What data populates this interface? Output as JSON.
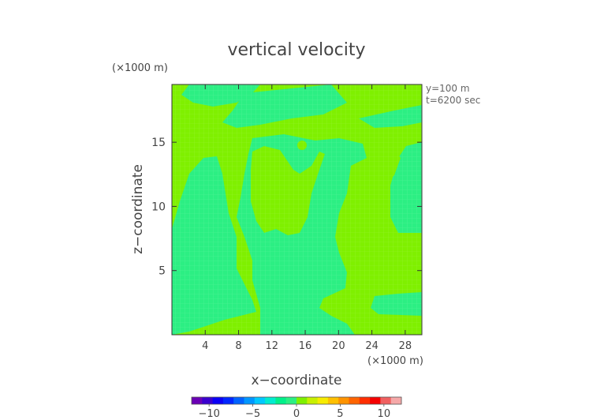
{
  "chart_data": {
    "type": "heatmap",
    "title": "vertical velocity",
    "xlabel": "x−coordinate",
    "ylabel": "z−coordinate",
    "x_unit": "(×1000 m)",
    "y_unit": "(×1000 m)",
    "annotations": [
      "y=100 m",
      "t=6200 sec"
    ],
    "xlim": [
      0,
      30
    ],
    "ylim": [
      0,
      19.5
    ],
    "x_ticks": [
      4,
      8,
      12,
      16,
      20,
      24,
      28
    ],
    "y_ticks": [
      5,
      10,
      15
    ],
    "x_tick_labels": [
      "4",
      "8",
      "12",
      "16",
      "20",
      "24",
      "28"
    ],
    "y_tick_labels": [
      "5",
      "10",
      "15"
    ],
    "field_levels": [
      "0 to 1.25",
      "-1.25 to 0"
    ],
    "region_colors": {
      "lime": "#7ff000",
      "teal": "#2cef83"
    },
    "colorbar": {
      "range": [
        -12,
        12
      ],
      "ticks": [
        -10,
        -5,
        0,
        5,
        10
      ],
      "tick_labels": [
        "−10",
        "−5",
        "0",
        "5",
        "10"
      ],
      "colors": [
        "#6a00b5",
        "#3a00ce",
        "#0b00f5",
        "#0026ff",
        "#0062ff",
        "#0096ff",
        "#00c8ff",
        "#00ecd0",
        "#00f08a",
        "#2cef83",
        "#7ff000",
        "#c8f000",
        "#f7ec00",
        "#ffc000",
        "#ff9400",
        "#ff6400",
        "#ff2e00",
        "#f50000",
        "#f06060",
        "#f5a8a8"
      ]
    }
  }
}
